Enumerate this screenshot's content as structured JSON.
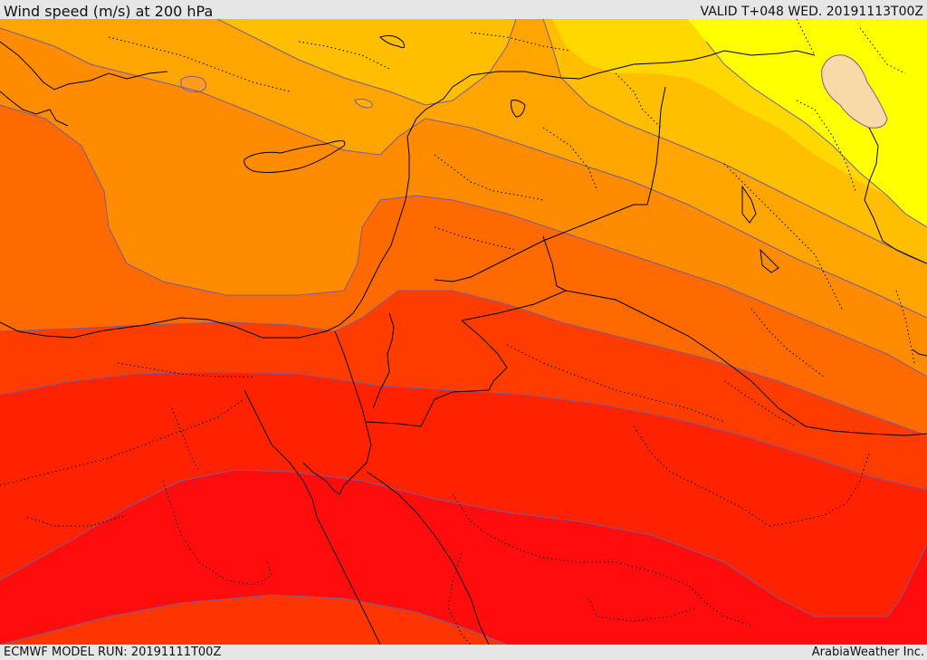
{
  "header": {
    "title": "Wind speed (m/s) at 200 hPa",
    "valid": "VALID T+048 WED. 20191113T00Z"
  },
  "footer": {
    "model_run": "ECMWF MODEL RUN: 20191111T00Z",
    "credit": "ArabiaWeather Inc."
  },
  "map": {
    "colors": {
      "band_light_yellow": "#ffff00",
      "band_yellow": "#ffd700",
      "band_gold": "#ffbf00",
      "band_light_orange": "#ffa500",
      "band_orange": "#ff8c00",
      "band_dark_orange": "#ff6a00",
      "band_red_orange": "#ff3c00",
      "band_red": "#ff1a00",
      "band_core": "#ff0000",
      "pale_patch": "#f9d9a8",
      "contour_line": "#7a5a9a",
      "border_line": "#000000"
    }
  }
}
